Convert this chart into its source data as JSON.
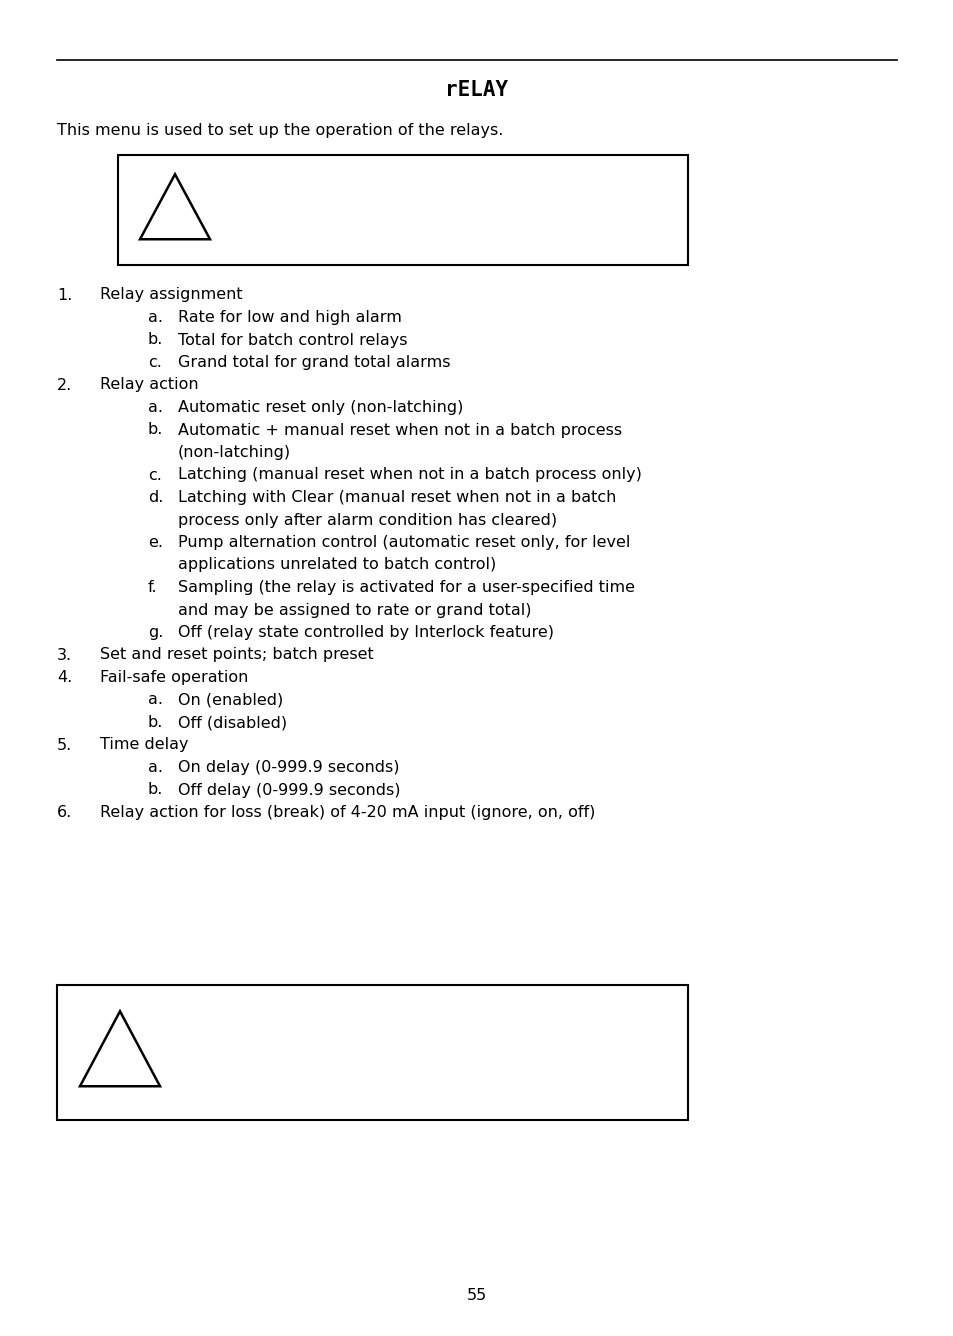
{
  "title": "rELAY",
  "intro_text": "This menu is used to set up the operation of the relays.",
  "items": [
    {
      "num": "1.",
      "text": "Relay assignment",
      "sub": [
        {
          "letter": "a.",
          "text": "Rate for low and high alarm"
        },
        {
          "letter": "b.",
          "text": "Total for batch control relays"
        },
        {
          "letter": "c.",
          "text": "Grand total for grand total alarms"
        }
      ]
    },
    {
      "num": "2.",
      "text": "Relay action",
      "sub": [
        {
          "letter": "a.",
          "text": "Automatic reset only (non-latching)"
        },
        {
          "letter": "b.",
          "text_line1": "Automatic + manual reset when not in a batch process",
          "text_line2": "(non-latching)"
        },
        {
          "letter": "c.",
          "text": "Latching (manual reset when not in a batch process only)"
        },
        {
          "letter": "d.",
          "text_line1": "Latching with Clear (manual reset when not in a batch",
          "text_line2": "process only after alarm condition has cleared)"
        },
        {
          "letter": "e.",
          "text_line1": "Pump alternation control (automatic reset only, for level",
          "text_line2": "applications unrelated to batch control)"
        },
        {
          "letter": "f.",
          "text_line1": "Sampling (the relay is activated for a user-specified time",
          "text_line2": "and may be assigned to rate or grand total)"
        },
        {
          "letter": "g.",
          "text": "Off (relay state controlled by Interlock feature)"
        }
      ]
    },
    {
      "num": "3.",
      "text": "Set and reset points; batch preset",
      "sub": []
    },
    {
      "num": "4.",
      "text": "Fail-safe operation",
      "sub": [
        {
          "letter": "a.",
          "text": "On (enabled)"
        },
        {
          "letter": "b.",
          "text": "Off (disabled)"
        }
      ]
    },
    {
      "num": "5.",
      "text": "Time delay",
      "sub": [
        {
          "letter": "a.",
          "text": "On delay (0-999.9 seconds)"
        },
        {
          "letter": "b.",
          "text": "Off delay (0-999.9 seconds)"
        }
      ]
    },
    {
      "num": "6.",
      "text": "Relay action for loss (break) of 4-20 mA input (ignore, on, off)",
      "sub": []
    }
  ],
  "page_number": "55",
  "bg_color": "#ffffff",
  "text_color": "#000000",
  "font_size": 11.5,
  "title_font_size": 15
}
